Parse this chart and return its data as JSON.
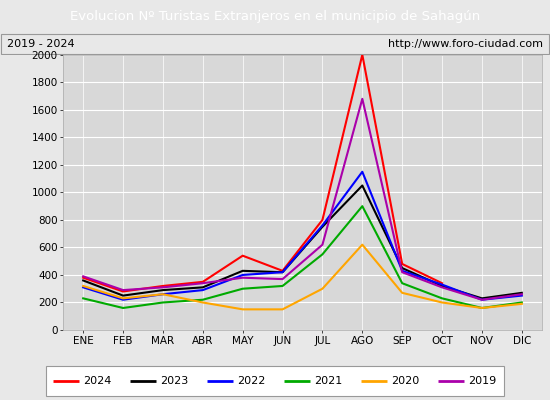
{
  "title": "Evolucion Nº Turistas Extranjeros en el municipio de Sahagún",
  "subtitle_left": "2019 - 2024",
  "subtitle_right": "http://www.foro-ciudad.com",
  "title_bg_color": "#4472c4",
  "title_text_color": "#ffffff",
  "months": [
    "ENE",
    "FEB",
    "MAR",
    "ABR",
    "MAY",
    "JUN",
    "JUL",
    "AGO",
    "SEP",
    "OCT",
    "NOV",
    "DIC"
  ],
  "ylim": [
    0,
    2000
  ],
  "yticks": [
    0,
    200,
    400,
    600,
    800,
    1000,
    1200,
    1400,
    1600,
    1800,
    2000
  ],
  "series": {
    "2024": {
      "color": "#ff0000",
      "data": [
        380,
        280,
        320,
        350,
        540,
        430,
        800,
        2000,
        480,
        340,
        null,
        null
      ]
    },
    "2023": {
      "color": "#000000",
      "data": [
        360,
        250,
        290,
        310,
        430,
        420,
        750,
        1050,
        450,
        320,
        230,
        270
      ]
    },
    "2022": {
      "color": "#0000ff",
      "data": [
        310,
        220,
        260,
        290,
        400,
        420,
        760,
        1150,
        430,
        330,
        220,
        250
      ]
    },
    "2021": {
      "color": "#00aa00",
      "data": [
        230,
        160,
        200,
        220,
        300,
        320,
        550,
        900,
        340,
        230,
        160,
        200
      ]
    },
    "2020": {
      "color": "#ffa500",
      "data": [
        320,
        230,
        260,
        200,
        150,
        150,
        300,
        620,
        270,
        200,
        160,
        190
      ]
    },
    "2019": {
      "color": "#aa00aa",
      "data": [
        390,
        290,
        310,
        340,
        380,
        370,
        620,
        1680,
        420,
        310,
        220,
        260
      ]
    }
  },
  "background_color": "#e8e8e8",
  "plot_bg_color": "#d8d8d8",
  "grid_color": "#ffffff",
  "legend_order": [
    "2024",
    "2023",
    "2022",
    "2021",
    "2020",
    "2019"
  ],
  "fig_width": 5.5,
  "fig_height": 4.0,
  "dpi": 100
}
